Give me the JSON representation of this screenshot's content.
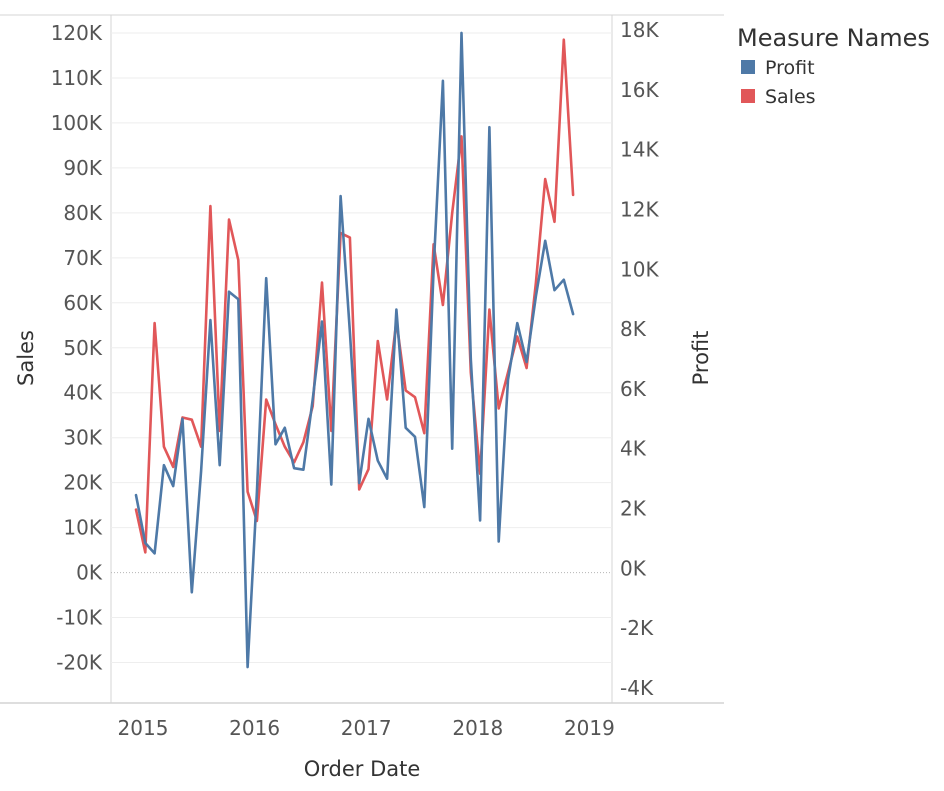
{
  "chart_data": {
    "type": "line",
    "xlabel": "Order Date",
    "ylabel": "Sales",
    "y2label": "Profit",
    "x_ticks": [
      "2015",
      "2016",
      "2017",
      "2018",
      "2019"
    ],
    "y_ticks": [
      "120K",
      "110K",
      "100K",
      "90K",
      "80K",
      "70K",
      "60K",
      "50K",
      "40K",
      "30K",
      "20K",
      "10K",
      "0K",
      "-10K",
      "-20K"
    ],
    "y2_ticks": [
      "18K",
      "16K",
      "14K",
      "12K",
      "10K",
      "8K",
      "6K",
      "4K",
      "2K",
      "0K",
      "-2K",
      "-4K"
    ],
    "ylim": [
      -29000,
      124000
    ],
    "y2lim": [
      -4500,
      18500
    ],
    "grid": true,
    "legend_placement": "top-right",
    "legend_title": "Measure Names",
    "x": [
      "2015-01",
      "2015-02",
      "2015-03",
      "2015-04",
      "2015-05",
      "2015-06",
      "2015-07",
      "2015-08",
      "2015-09",
      "2015-10",
      "2015-11",
      "2015-12",
      "2016-01",
      "2016-02",
      "2016-03",
      "2016-04",
      "2016-05",
      "2016-06",
      "2016-07",
      "2016-08",
      "2016-09",
      "2016-10",
      "2016-11",
      "2016-12",
      "2017-01",
      "2017-02",
      "2017-03",
      "2017-04",
      "2017-05",
      "2017-06",
      "2017-07",
      "2017-08",
      "2017-09",
      "2017-10",
      "2017-11",
      "2017-12",
      "2018-01",
      "2018-02",
      "2018-03",
      "2018-04",
      "2018-05",
      "2018-06",
      "2018-07",
      "2018-08",
      "2018-09",
      "2018-10",
      "2018-11",
      "2018-12"
    ],
    "series": [
      {
        "name": "Profit",
        "axis": "right",
        "color": "#4e79a7",
        "values": [
          2450,
          850,
          500,
          3450,
          2750,
          5000,
          -800,
          3250,
          8300,
          3450,
          9250,
          9000,
          -3300,
          2550,
          9700,
          4150,
          4700,
          3350,
          3300,
          5650,
          8250,
          2800,
          12450,
          7900,
          2850,
          5000,
          3600,
          3000,
          8650,
          4700,
          4400,
          2050,
          10000,
          16300,
          4000,
          17900,
          7000,
          1600,
          14750,
          900,
          6300,
          8200,
          6900,
          9100,
          10950,
          9300,
          9650,
          8500
        ]
      },
      {
        "name": "Sales",
        "axis": "left",
        "color": "#e15759",
        "values": [
          14000,
          4500,
          55500,
          28000,
          23500,
          34500,
          34000,
          28000,
          81500,
          31500,
          78500,
          69500,
          18000,
          11500,
          38500,
          33000,
          28000,
          24500,
          29000,
          37000,
          64500,
          31500,
          75500,
          74500,
          18500,
          23000,
          51500,
          38500,
          56000,
          40500,
          39000,
          31000,
          73000,
          59500,
          80000,
          97000,
          44500,
          22000,
          58500,
          36500,
          44500,
          52500,
          45500,
          64500,
          87500,
          78000,
          118500,
          84000
        ]
      }
    ]
  }
}
